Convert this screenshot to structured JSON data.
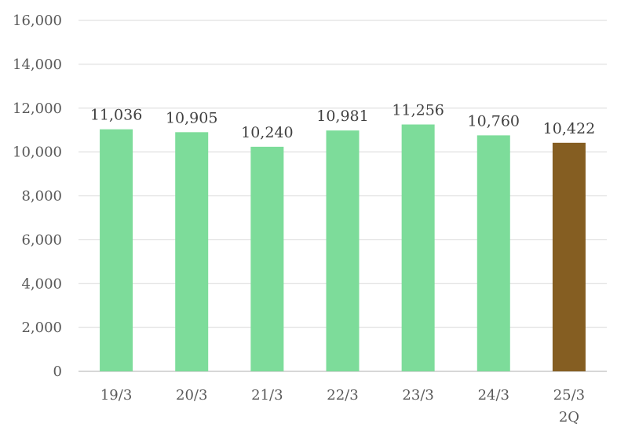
{
  "chart_data": {
    "type": "bar",
    "title": "",
    "xlabel": "",
    "ylabel": "",
    "categories": [
      "19/3",
      "20/3",
      "21/3",
      "22/3",
      "23/3",
      "24/3",
      "25/3\n2Q"
    ],
    "values": [
      11036,
      10905,
      10240,
      10981,
      11256,
      10760,
      10422
    ],
    "value_labels": [
      "11,036",
      "10,905",
      "10,240",
      "10,981",
      "11,256",
      "10,760",
      "10,422"
    ],
    "ylim": [
      0,
      16000
    ],
    "yticks": [
      0,
      2000,
      4000,
      6000,
      8000,
      10000,
      12000,
      14000,
      16000
    ],
    "ytick_labels": [
      "0",
      "2,000",
      "4,000",
      "6,000",
      "8,000",
      "10,000",
      "12,000",
      "14,000",
      "16,000"
    ],
    "grid": true,
    "legend": "none",
    "colors": {
      "default": "#7ddc9a",
      "highlight": "#855e22",
      "highlight_index": 6
    }
  }
}
